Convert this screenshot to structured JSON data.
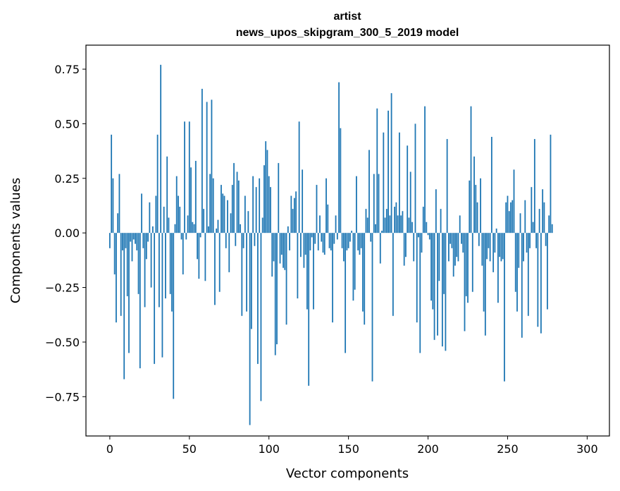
{
  "chart_data": {
    "type": "bar",
    "title": "artist",
    "subtitle": "news_upos_skipgram_300_5_2019 model",
    "xlabel": "Vector components",
    "ylabel": "Components values",
    "xlim": [
      -15,
      314
    ],
    "ylim": [
      -0.93,
      0.86
    ],
    "xticks": [
      0,
      50,
      100,
      150,
      200,
      250,
      300
    ],
    "xtick_labels": [
      "0",
      "50",
      "100",
      "150",
      "200",
      "250",
      "300"
    ],
    "yticks": [
      -0.75,
      -0.5,
      -0.25,
      0.0,
      0.25,
      0.5,
      0.75
    ],
    "ytick_labels": [
      "−0.75",
      "−0.50",
      "−0.25",
      "0.00",
      "0.25",
      "0.50",
      "0.75"
    ],
    "bar_color": "#1f77b4",
    "series": [
      {
        "name": "artist",
        "values": [
          -0.07,
          0.45,
          0.25,
          -0.19,
          -0.41,
          0.09,
          0.27,
          -0.38,
          -0.08,
          -0.67,
          -0.07,
          -0.29,
          -0.55,
          -0.04,
          -0.13,
          -0.03,
          -0.05,
          -0.08,
          -0.28,
          -0.62,
          0.18,
          -0.07,
          -0.34,
          -0.12,
          -0.04,
          0.14,
          -0.25,
          0.03,
          -0.6,
          0.17,
          0.45,
          -0.34,
          0.77,
          -0.57,
          0.12,
          -0.3,
          0.35,
          0.07,
          -0.28,
          -0.36,
          -0.76,
          0.04,
          0.26,
          0.17,
          0.12,
          -0.03,
          -0.19,
          0.51,
          -0.03,
          0.08,
          0.51,
          0.3,
          0.05,
          0.04,
          0.33,
          -0.12,
          -0.21,
          -0.02,
          0.66,
          0.11,
          -0.22,
          0.6,
          0.03,
          0.27,
          0.61,
          0.25,
          -0.33,
          0.02,
          0.06,
          -0.27,
          0.22,
          0.18,
          0.17,
          -0.07,
          0.15,
          -0.18,
          0.09,
          0.22,
          0.32,
          -0.06,
          0.28,
          0.24,
          0.04,
          -0.38,
          -0.07,
          0.17,
          -0.36,
          0.1,
          -0.88,
          -0.44,
          0.26,
          -0.06,
          0.21,
          -0.6,
          0.25,
          -0.77,
          0.07,
          0.31,
          0.42,
          0.38,
          0.26,
          0.21,
          -0.2,
          -0.13,
          -0.56,
          -0.51,
          0.32,
          -0.14,
          -0.1,
          -0.16,
          -0.17,
          -0.42,
          0.03,
          -0.08,
          0.17,
          0.11,
          0.16,
          0.19,
          -0.3,
          0.51,
          -0.11,
          0.29,
          -0.16,
          -0.1,
          -0.35,
          -0.7,
          -0.08,
          -0.02,
          -0.35,
          -0.05,
          0.22,
          -0.08,
          0.08,
          -0.04,
          -0.09,
          -0.1,
          0.25,
          0.13,
          -0.07,
          -0.08,
          -0.41,
          -0.05,
          0.08,
          -0.03,
          0.69,
          0.48,
          -0.07,
          -0.13,
          -0.55,
          -0.08,
          -0.07,
          -0.04,
          0.01,
          -0.31,
          -0.26,
          0.26,
          -0.08,
          -0.1,
          -0.07,
          -0.36,
          -0.42,
          0.11,
          0.07,
          0.38,
          -0.04,
          -0.68,
          0.27,
          0.04,
          0.57,
          0.27,
          -0.14,
          0.01,
          0.46,
          0.07,
          0.11,
          0.56,
          0.08,
          0.64,
          -0.38,
          0.12,
          0.14,
          0.08,
          0.46,
          0.08,
          0.1,
          -0.15,
          -0.11,
          0.4,
          0.07,
          0.28,
          0.05,
          -0.13,
          0.5,
          -0.41,
          -0.02,
          -0.55,
          -0.09,
          0.12,
          0.58,
          0.05,
          -0.01,
          -0.03,
          -0.31,
          -0.35,
          -0.49,
          0.2,
          -0.47,
          -0.22,
          0.11,
          -0.52,
          -0.28,
          -0.54,
          0.43,
          -0.13,
          -0.05,
          -0.07,
          -0.2,
          -0.15,
          -0.11,
          -0.13,
          0.08,
          -0.05,
          -0.09,
          -0.45,
          -0.29,
          -0.32,
          0.24,
          0.58,
          -0.27,
          0.35,
          0.22,
          0.14,
          -0.06,
          0.25,
          -0.15,
          -0.36,
          -0.47,
          -0.12,
          -0.07,
          -0.13,
          0.44,
          -0.18,
          -0.09,
          0.02,
          -0.32,
          -0.11,
          -0.13,
          -0.12,
          -0.68,
          0.14,
          0.17,
          0.1,
          0.14,
          0.15,
          0.29,
          -0.27,
          -0.36,
          -0.16,
          0.09,
          -0.48,
          -0.13,
          0.15,
          -0.09,
          -0.38,
          -0.07,
          0.21,
          0.05,
          0.43,
          -0.07,
          -0.43,
          0.11,
          -0.46,
          0.2,
          0.14,
          -0.06,
          -0.35,
          0.08,
          0.45,
          0.04
        ]
      }
    ]
  }
}
